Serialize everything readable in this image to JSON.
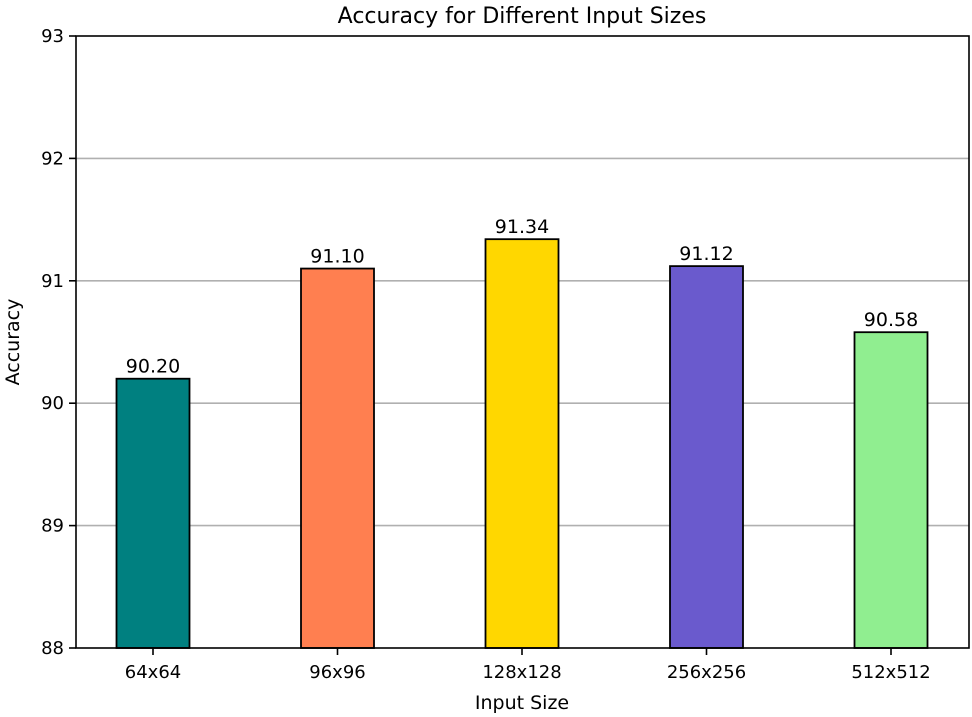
{
  "chart_data": {
    "type": "bar",
    "title": "Accuracy for Different Input Sizes",
    "xlabel": "Input Size",
    "ylabel": "Accuracy",
    "categories": [
      "64x64",
      "96x96",
      "128x128",
      "256x256",
      "512x512"
    ],
    "values": [
      90.2,
      91.1,
      91.34,
      91.12,
      90.58
    ],
    "value_labels": [
      "90.20",
      "91.10",
      "91.34",
      "91.12",
      "90.58"
    ],
    "colors": [
      "#008080",
      "#FF7F50",
      "#FFD700",
      "#6A5ACD",
      "#90EE90"
    ],
    "ylim": [
      88,
      93
    ],
    "yticks": [
      88,
      89,
      90,
      91,
      92,
      93
    ],
    "grid": "y-axis",
    "legend": "none"
  }
}
